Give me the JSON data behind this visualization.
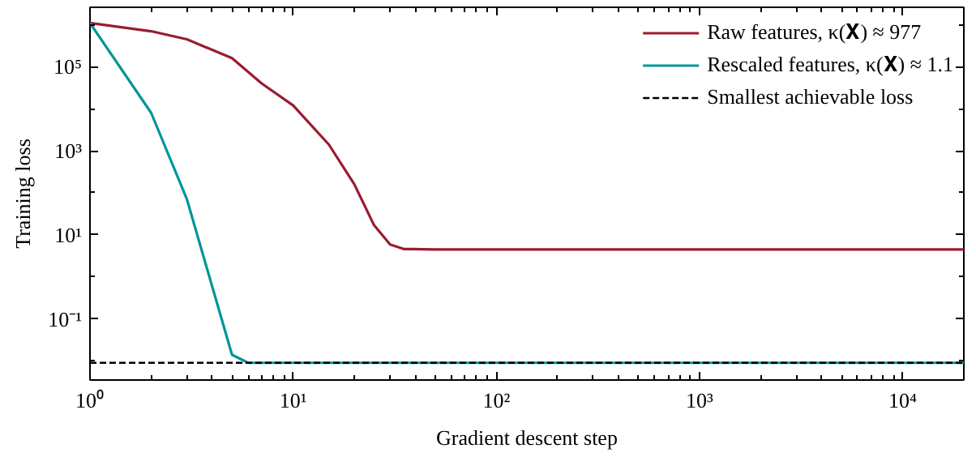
{
  "chart_data": {
    "type": "line",
    "xlabel": "Gradient descent step",
    "ylabel": "Training loss",
    "log": "xy",
    "grid": false,
    "legend": "top right",
    "line_style": "solid",
    "xlim": [
      1,
      20000
    ],
    "ylim": [
      0.0035,
      2600000
    ],
    "xticks": [
      {
        "value": 1,
        "label": "10⁰"
      },
      {
        "value": 10,
        "label": "10¹"
      },
      {
        "value": 100,
        "label": "10²"
      },
      {
        "value": 1000,
        "label": "10³"
      },
      {
        "value": 10000,
        "label": "10⁴"
      }
    ],
    "yticks": [
      {
        "value": 0.1,
        "label": "10⁻¹"
      },
      {
        "value": 10,
        "label": "10¹"
      },
      {
        "value": 1000,
        "label": "10³"
      },
      {
        "value": 100000,
        "label": "10⁵"
      }
    ],
    "series": [
      {
        "name": "Raw features, κ(𝐗) ≈ 977",
        "color": "#9b1b30",
        "x": [
          1,
          2,
          3,
          5,
          7,
          10,
          15,
          20,
          25,
          30,
          35,
          50,
          20000
        ],
        "values": [
          1100000,
          700000,
          450000,
          160000,
          40000,
          12000,
          1400,
          160,
          17,
          5.9,
          4.6,
          4.5,
          4.5
        ]
      },
      {
        "name": "Rescaled features, κ(𝐗) ≈ 1.1",
        "color": "#00959a",
        "x": [
          1,
          2,
          3,
          5,
          6,
          20000
        ],
        "values": [
          1100000,
          8000,
          70,
          0.014,
          0.009,
          0.009
        ]
      }
    ],
    "ref_lines": [
      {
        "axis": "y",
        "value": 0.009,
        "label": "Smallest achievable loss",
        "color": "#000000",
        "line_style": "dashed"
      }
    ]
  }
}
